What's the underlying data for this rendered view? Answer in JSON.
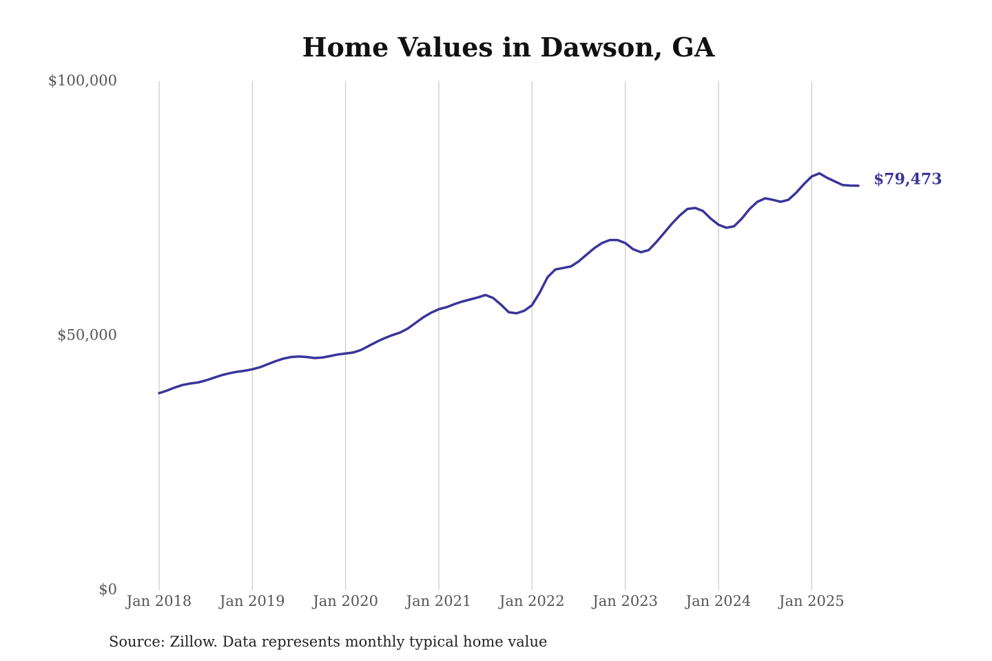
{
  "chart_data": {
    "type": "line",
    "title": "Home Values in Dawson, GA",
    "source": "Source: Zillow. Data represents monthly typical home value",
    "xlabel": "",
    "ylabel": "",
    "ylim": [
      0,
      100000
    ],
    "yticks": [
      {
        "value": 0,
        "label": "$0"
      },
      {
        "value": 50000,
        "label": "$50,000"
      },
      {
        "value": 100000,
        "label": "$100,000"
      }
    ],
    "xticks": [
      {
        "value": "2018-01",
        "label": "Jan 2018"
      },
      {
        "value": "2019-01",
        "label": "Jan 2019"
      },
      {
        "value": "2020-01",
        "label": "Jan 2020"
      },
      {
        "value": "2021-01",
        "label": "Jan 2021"
      },
      {
        "value": "2022-01",
        "label": "Jan 2022"
      },
      {
        "value": "2023-01",
        "label": "Jan 2023"
      },
      {
        "value": "2024-01",
        "label": "Jan 2024"
      },
      {
        "value": "2025-01",
        "label": "Jan 2025"
      }
    ],
    "vertical_grid": true,
    "horizontal_grid": false,
    "legend": "none",
    "end_label": "$79,473",
    "color": "#39359a",
    "x": [
      "2018-01",
      "2018-02",
      "2018-03",
      "2018-04",
      "2018-05",
      "2018-06",
      "2018-07",
      "2018-08",
      "2018-09",
      "2018-10",
      "2018-11",
      "2018-12",
      "2019-01",
      "2019-02",
      "2019-03",
      "2019-04",
      "2019-05",
      "2019-06",
      "2019-07",
      "2019-08",
      "2019-09",
      "2019-10",
      "2019-11",
      "2019-12",
      "2020-01",
      "2020-02",
      "2020-03",
      "2020-04",
      "2020-05",
      "2020-06",
      "2020-07",
      "2020-08",
      "2020-09",
      "2020-10",
      "2020-11",
      "2020-12",
      "2021-01",
      "2021-02",
      "2021-03",
      "2021-04",
      "2021-05",
      "2021-06",
      "2021-07",
      "2021-08",
      "2021-09",
      "2021-10",
      "2021-11",
      "2021-12",
      "2022-01",
      "2022-02",
      "2022-03",
      "2022-04",
      "2022-05",
      "2022-06",
      "2022-07",
      "2022-08",
      "2022-09",
      "2022-10",
      "2022-11",
      "2022-12",
      "2023-01",
      "2023-02",
      "2023-03",
      "2023-04",
      "2023-05",
      "2023-06",
      "2023-07",
      "2023-08",
      "2023-09",
      "2023-10",
      "2023-11",
      "2023-12",
      "2024-01",
      "2024-02",
      "2024-03",
      "2024-04",
      "2024-05",
      "2024-06",
      "2024-07",
      "2024-08",
      "2024-09",
      "2024-10",
      "2024-11",
      "2024-12",
      "2025-01",
      "2025-02",
      "2025-03",
      "2025-04",
      "2025-05",
      "2025-06",
      "2025-07"
    ],
    "values": [
      38700,
      39200,
      39800,
      40300,
      40600,
      40800,
      41200,
      41700,
      42200,
      42600,
      42900,
      43100,
      43400,
      43800,
      44400,
      45000,
      45500,
      45800,
      45900,
      45800,
      45600,
      45700,
      46000,
      46300,
      46500,
      46700,
      47200,
      48000,
      48800,
      49500,
      50100,
      50600,
      51400,
      52500,
      53600,
      54500,
      55200,
      55600,
      56200,
      56700,
      57100,
      57500,
      58000,
      57400,
      56100,
      54600,
      54400,
      54900,
      56000,
      58500,
      61500,
      63000,
      63300,
      63600,
      64600,
      65900,
      67200,
      68200,
      68800,
      68800,
      68200,
      67000,
      66400,
      66800,
      68400,
      70200,
      72000,
      73600,
      74900,
      75100,
      74500,
      73000,
      71800,
      71200,
      71500,
      73000,
      74900,
      76300,
      77000,
      76700,
      76300,
      76700,
      78100,
      79800,
      81300,
      81900,
      81000,
      80300,
      79600,
      79500,
      79473
    ]
  }
}
